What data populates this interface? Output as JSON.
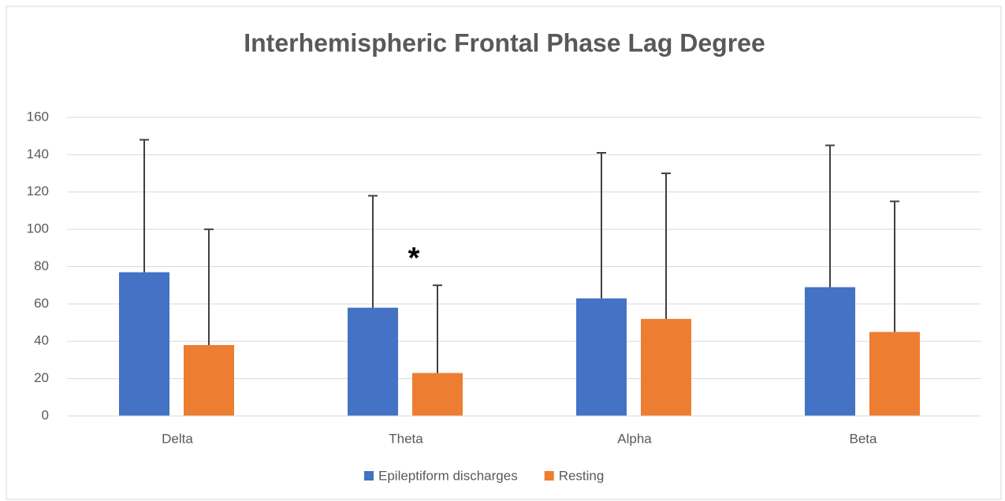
{
  "chart_data": {
    "type": "bar",
    "title": "Interhemispheric Frontal Phase Lag Degree",
    "categories": [
      "Delta",
      "Theta",
      "Alpha",
      "Beta"
    ],
    "series": [
      {
        "name": "Epileptiform discharges",
        "color": "#4472c4",
        "values": [
          77,
          58,
          63,
          69
        ],
        "errors": [
          71,
          60,
          78,
          76
        ]
      },
      {
        "name": "Resting",
        "color": "#ed7d31",
        "values": [
          38,
          23,
          52,
          45
        ],
        "errors": [
          62,
          47,
          78,
          70
        ]
      }
    ],
    "annotation": "*",
    "ylim": [
      0,
      160
    ],
    "yticks": [
      0,
      20,
      40,
      60,
      80,
      100,
      120,
      140,
      160
    ],
    "grid": true,
    "legend": "bottom"
  }
}
